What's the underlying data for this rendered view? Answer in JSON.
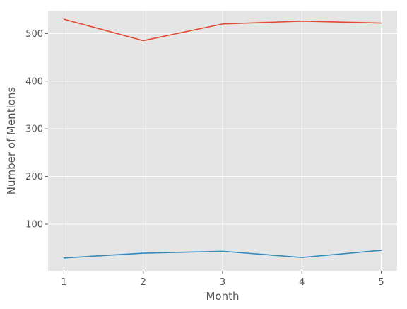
{
  "chart_data": {
    "type": "line",
    "title": "",
    "xlabel": "Month",
    "ylabel": "Number of Mentions",
    "x": [
      1,
      2,
      3,
      4,
      5
    ],
    "xlim": [
      0.8,
      5.2
    ],
    "ylim": [
      2,
      548
    ],
    "x_ticks": [
      "1",
      "2",
      "3",
      "4",
      "5"
    ],
    "y_ticks": [
      "100",
      "200",
      "300",
      "400",
      "500"
    ],
    "grid": true,
    "legend": "none",
    "background_color": "#e5e5e5",
    "series": [
      {
        "color": "#e24a33",
        "values": [
          530,
          485,
          520,
          526,
          522
        ]
      },
      {
        "color": "#348abd",
        "values": [
          29,
          39,
          43,
          30,
          45
        ]
      }
    ]
  }
}
